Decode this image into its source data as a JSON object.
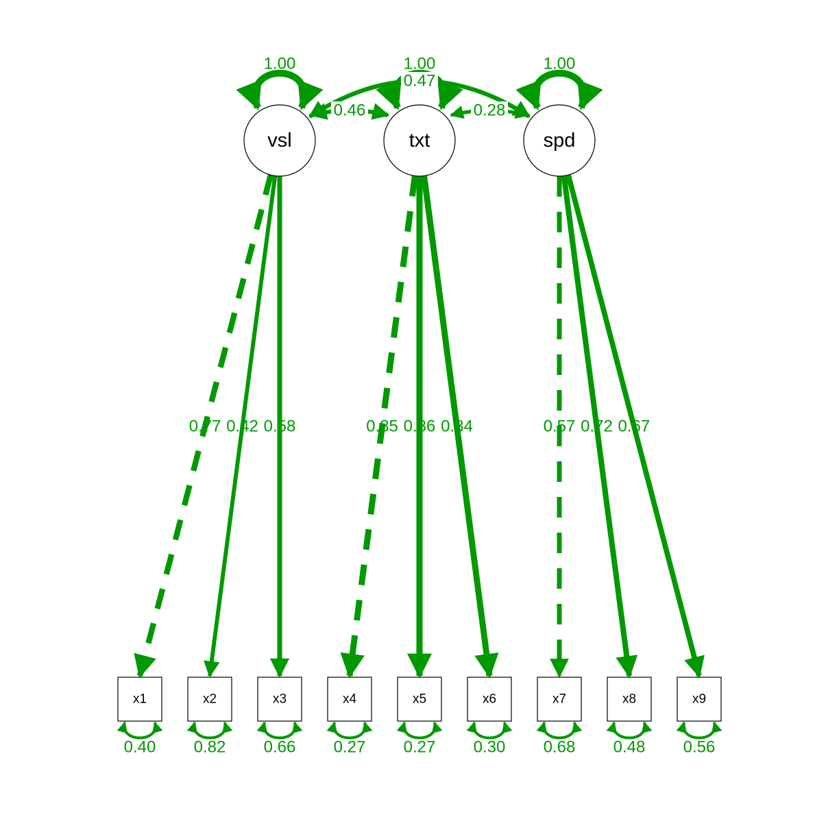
{
  "colors": {
    "edge": "#009900",
    "node_stroke": "#000000",
    "background": "#ffffff"
  },
  "latents": [
    {
      "id": "vsl",
      "label": "vsl",
      "variance": "1.00"
    },
    {
      "id": "txt",
      "label": "txt",
      "variance": "1.00"
    },
    {
      "id": "spd",
      "label": "spd",
      "variance": "1.00"
    }
  ],
  "manifests": [
    {
      "id": "x1",
      "label": "x1",
      "residual": "0.40"
    },
    {
      "id": "x2",
      "label": "x2",
      "residual": "0.82"
    },
    {
      "id": "x3",
      "label": "x3",
      "residual": "0.66"
    },
    {
      "id": "x4",
      "label": "x4",
      "residual": "0.27"
    },
    {
      "id": "x5",
      "label": "x5",
      "residual": "0.27"
    },
    {
      "id": "x6",
      "label": "x6",
      "residual": "0.30"
    },
    {
      "id": "x7",
      "label": "x7",
      "residual": "0.68"
    },
    {
      "id": "x8",
      "label": "x8",
      "residual": "0.48"
    },
    {
      "id": "x9",
      "label": "x9",
      "residual": "0.56"
    }
  ],
  "loadings": [
    {
      "from": "vsl",
      "to": "x1",
      "value": 0.77,
      "label": "0.77",
      "fixed": true
    },
    {
      "from": "vsl",
      "to": "x2",
      "value": 0.42,
      "label": "0.42",
      "fixed": false
    },
    {
      "from": "vsl",
      "to": "x3",
      "value": 0.58,
      "label": "0.58",
      "fixed": false
    },
    {
      "from": "txt",
      "to": "x4",
      "value": 0.85,
      "label": "0.85",
      "fixed": true
    },
    {
      "from": "txt",
      "to": "x5",
      "value": 0.86,
      "label": "0.86",
      "fixed": false
    },
    {
      "from": "txt",
      "to": "x6",
      "value": 0.84,
      "label": "0.84",
      "fixed": false
    },
    {
      "from": "spd",
      "to": "x7",
      "value": 0.57,
      "label": "0.57",
      "fixed": true
    },
    {
      "from": "spd",
      "to": "x8",
      "value": 0.72,
      "label": "0.72",
      "fixed": false
    },
    {
      "from": "spd",
      "to": "x9",
      "value": 0.67,
      "label": "0.67",
      "fixed": false
    }
  ],
  "covariances": [
    {
      "a": "vsl",
      "b": "txt",
      "value": 0.46,
      "label": "0.46"
    },
    {
      "a": "txt",
      "b": "spd",
      "value": 0.28,
      "label": "0.28"
    },
    {
      "a": "vsl",
      "b": "spd",
      "value": 0.47,
      "label": "0.47"
    }
  ]
}
